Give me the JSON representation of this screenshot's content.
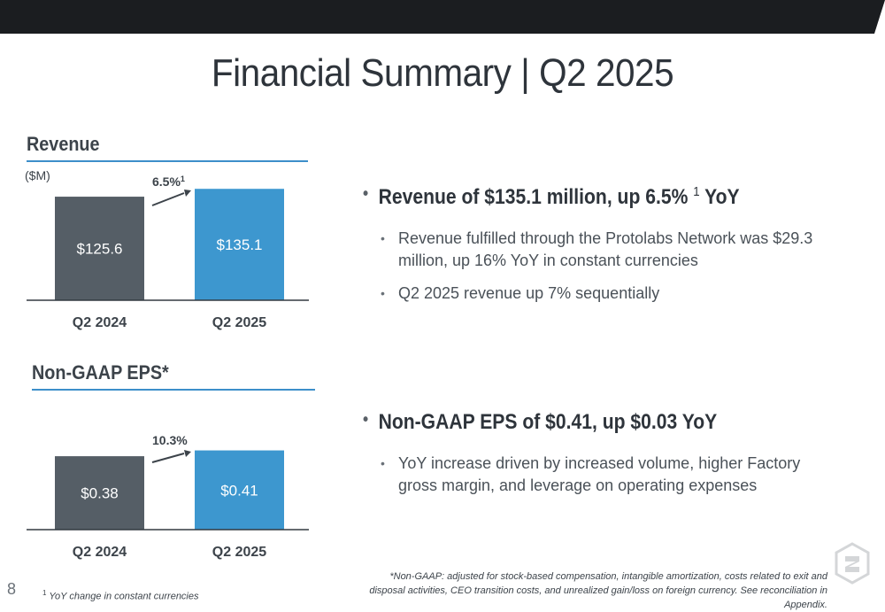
{
  "slide": {
    "title": "Financial Summary | Q2 2025",
    "page_number": "8"
  },
  "revenue": {
    "heading": "Revenue",
    "unit": "($M)",
    "change": "6.5%",
    "change_sup": "1"
  },
  "eps": {
    "heading": "Non-GAAP EPS*",
    "change": "10.3%"
  },
  "chart_data": [
    {
      "type": "bar",
      "title": "Revenue",
      "ylabel": "($M)",
      "categories": [
        "Q2 2024",
        "Q2 2025"
      ],
      "values": [
        125.6,
        135.1
      ],
      "value_labels": [
        "$125.6",
        "$135.1"
      ],
      "colors": [
        "#555e66",
        "#3d97cf"
      ],
      "ylim": [
        0,
        145
      ]
    },
    {
      "type": "bar",
      "title": "Non-GAAP EPS*",
      "categories": [
        "Q2 2024",
        "Q2 2025"
      ],
      "values": [
        0.38,
        0.41
      ],
      "value_labels": [
        "$0.38",
        "$0.41"
      ],
      "colors": [
        "#555e66",
        "#3d97cf"
      ],
      "ylim": [
        0,
        0.44
      ]
    }
  ],
  "bullets": {
    "revenue_main": "Revenue of $135.1 million, up 6.5%",
    "revenue_main_sup": "1",
    "revenue_main_suffix": "YoY",
    "revenue_sub": [
      "Revenue fulfilled through the Protolabs Network was $29.3 million, up 16% YoY in constant currencies",
      "Q2 2025 revenue up 7% sequentially"
    ],
    "eps_main": "Non-GAAP EPS of $0.41, up $0.03 YoY",
    "eps_sub": [
      "YoY increase driven by increased volume, higher Factory gross margin, and leverage on operating expenses"
    ]
  },
  "footnotes": {
    "left_sup": "1",
    "left": "YoY change in constant currencies",
    "right": "*Non-GAAP: adjusted for stock-based compensation, intangible amortization, costs related to exit and disposal activities, CEO transition costs, and unrealized gain/loss on foreign currency. See reconciliation in Appendix."
  },
  "colors": {
    "accent_blue": "#3d97cf",
    "bar_gray": "#555e66",
    "topbar": "#1b1d20"
  },
  "icons": {
    "logo": "protolabs-logo-icon"
  }
}
